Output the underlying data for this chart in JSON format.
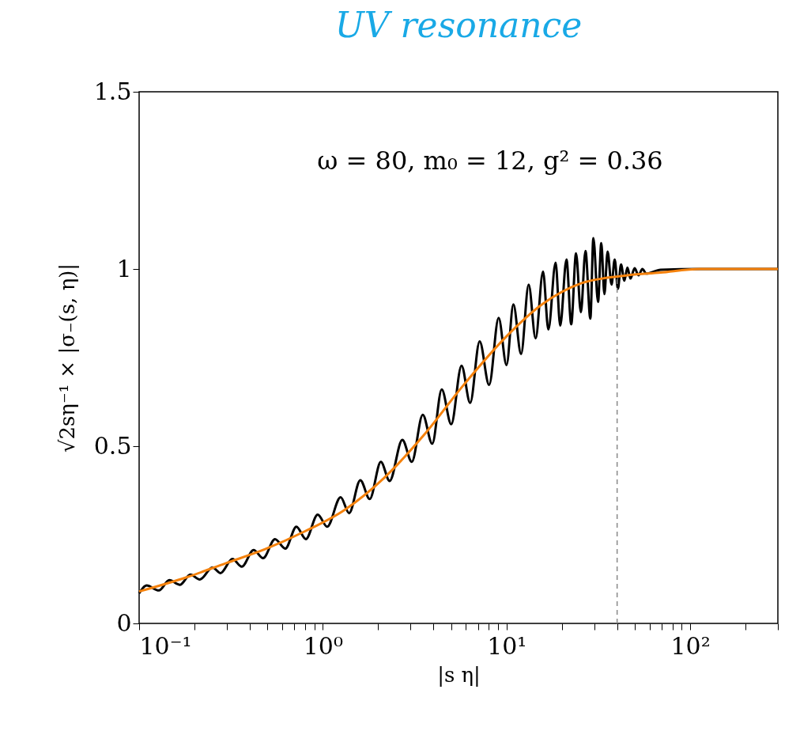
{
  "chart_data": {
    "type": "line",
    "title": "UV resonance",
    "xlabel": "|s η|",
    "ylabel": "√2sη⁻¹ × |σ₋(s, η)|",
    "log": "x",
    "grid": false,
    "marker": "none",
    "line_style": "solid",
    "xlim": [
      0.1,
      300
    ],
    "ylim": [
      0,
      1.5
    ],
    "xticks": [
      {
        "value": 0.1,
        "label": "10⁻¹"
      },
      {
        "value": 0.2,
        "label": null
      },
      {
        "value": 0.3,
        "label": null
      },
      {
        "value": 0.4,
        "label": null
      },
      {
        "value": 0.5,
        "label": null
      },
      {
        "value": 0.6,
        "label": null
      },
      {
        "value": 0.7,
        "label": null
      },
      {
        "value": 0.8,
        "label": null
      },
      {
        "value": 0.9,
        "label": null
      },
      {
        "value": 1,
        "label": "10⁰"
      },
      {
        "value": 2,
        "label": null
      },
      {
        "value": 3,
        "label": null
      },
      {
        "value": 4,
        "label": null
      },
      {
        "value": 5,
        "label": null
      },
      {
        "value": 6,
        "label": null
      },
      {
        "value": 7,
        "label": null
      },
      {
        "value": 8,
        "label": null
      },
      {
        "value": 9,
        "label": null
      },
      {
        "value": 10,
        "label": "10¹"
      },
      {
        "value": 20,
        "label": null
      },
      {
        "value": 30,
        "label": null
      },
      {
        "value": 40,
        "label": null
      },
      {
        "value": 50,
        "label": null
      },
      {
        "value": 60,
        "label": null
      },
      {
        "value": 70,
        "label": null
      },
      {
        "value": 80,
        "label": null
      },
      {
        "value": 90,
        "label": null
      },
      {
        "value": 100,
        "label": "10²"
      },
      {
        "value": 200,
        "label": null
      },
      {
        "value": 300,
        "label": null
      }
    ],
    "yticks": [
      0,
      0.5,
      1,
      1.5
    ],
    "annotations": [
      "ω = 80, m₀ = 12, g² = 0.36"
    ],
    "ref_lines": [
      {
        "axis": "x",
        "value": 40,
        "color": "#888888",
        "line_style": "dashed"
      }
    ],
    "series": [
      {
        "color": "#000000",
        "x": [
          0.1,
          0.11,
          0.128,
          0.146,
          0.167,
          0.19,
          0.214,
          0.251,
          0.277,
          0.322,
          0.362,
          0.42,
          0.473,
          0.549,
          0.625,
          0.718,
          0.808,
          0.938,
          1.056,
          1.25,
          1.39,
          1.6,
          1.8,
          2.07,
          2.31,
          2.71,
          3.05,
          3.5,
          3.94,
          4.44,
          5.0,
          5.69,
          6.34,
          7.14,
          8.04,
          9.06,
          10.0,
          10.9,
          12.0,
          13.2,
          14.4,
          15.8,
          16.9,
          18.5,
          19.6,
          21.2,
          22.5,
          23.9,
          25.4,
          26.9,
          28.6,
          29.7,
          31.5,
          32.8,
          34.1,
          35.5,
          37.3,
          38.8,
          40.4,
          42.0,
          43.8,
          45.5,
          47.3,
          49.8,
          52.3,
          54.9,
          57.7,
          69,
          113,
          300
        ],
        "values": [
          0.085,
          0.107,
          0.093,
          0.122,
          0.109,
          0.138,
          0.124,
          0.158,
          0.142,
          0.182,
          0.16,
          0.207,
          0.184,
          0.238,
          0.211,
          0.273,
          0.238,
          0.307,
          0.273,
          0.356,
          0.311,
          0.404,
          0.351,
          0.456,
          0.402,
          0.518,
          0.456,
          0.589,
          0.507,
          0.66,
          0.562,
          0.727,
          0.622,
          0.796,
          0.673,
          0.862,
          0.729,
          0.9,
          0.76,
          0.956,
          0.804,
          0.993,
          0.829,
          1.018,
          0.84,
          1.027,
          0.844,
          1.044,
          0.878,
          1.051,
          0.86,
          1.087,
          0.907,
          1.073,
          0.929,
          1.049,
          0.956,
          1.027,
          0.944,
          1.013,
          0.967,
          1.004,
          0.973,
          1.002,
          0.982,
          1.0,
          0.987,
          0.998,
          1.0,
          1.0
        ]
      },
      {
        "color": "#f5820d",
        "x": [
          0.1,
          0.181,
          0.297,
          0.488,
          0.8,
          1.31,
          2.15,
          3.53,
          5.78,
          10,
          15.6,
          25.6,
          42,
          69,
          113,
          300
        ],
        "values": [
          0.09,
          0.13,
          0.17,
          0.21,
          0.26,
          0.32,
          0.41,
          0.53,
          0.67,
          0.81,
          0.9,
          0.96,
          0.98,
          0.99,
          1.0,
          1.0
        ]
      }
    ]
  }
}
